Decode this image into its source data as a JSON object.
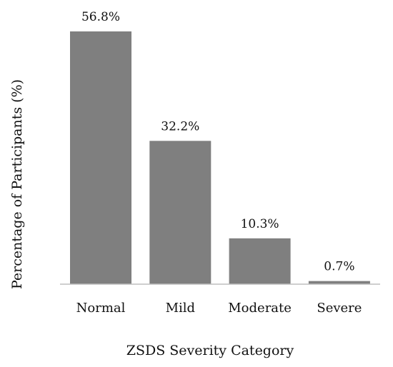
{
  "chart_data": {
    "type": "bar",
    "categories": [
      "Normal",
      "Mild",
      "Moderate",
      "Severe"
    ],
    "values": [
      56.8,
      32.2,
      10.3,
      0.7
    ],
    "data_labels": [
      "56.8%",
      "32.2%",
      "10.3%",
      "0.7%"
    ],
    "title": "",
    "xlabel": "ZSDS Severity Category",
    "ylabel": "Percentage of Participants (%)",
    "ylim": [
      0,
      60
    ],
    "grid": false,
    "legend": "none",
    "bar_color": "#7f7f7f",
    "axis_color": "#bfbfbf"
  }
}
